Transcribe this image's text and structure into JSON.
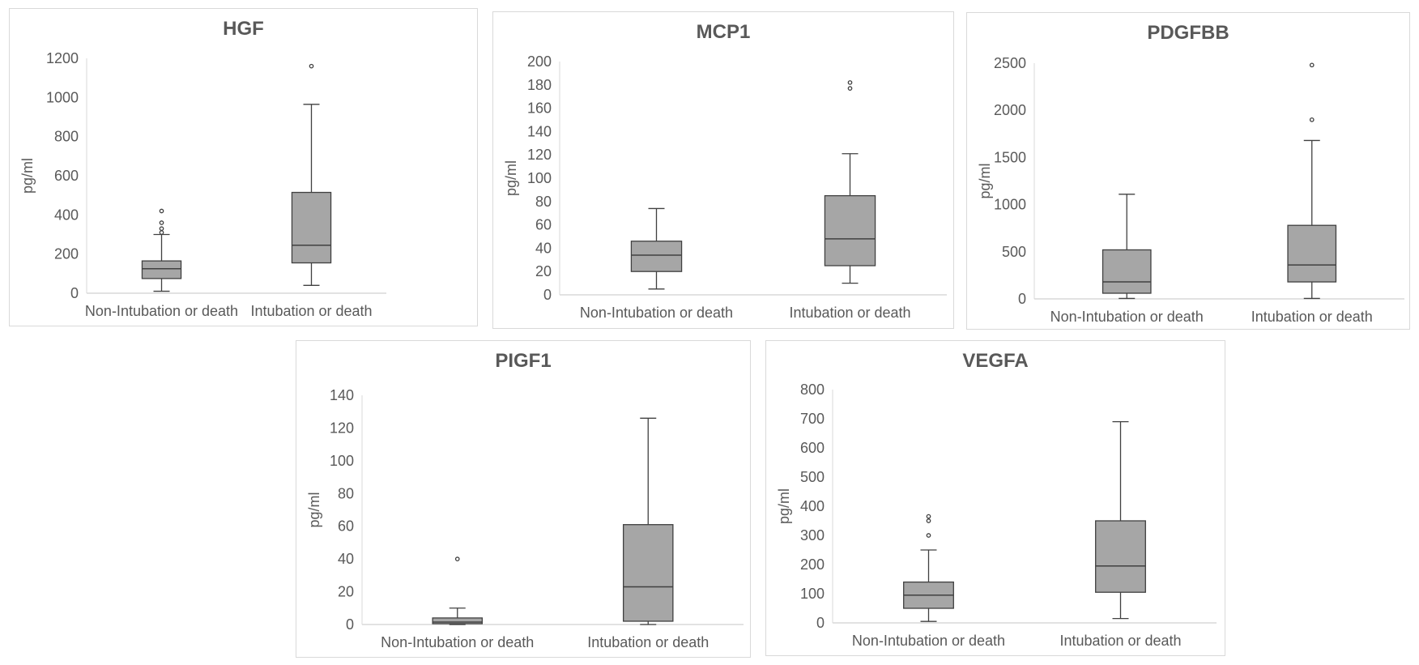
{
  "chart_data": [
    {
      "type": "boxplot",
      "title": "HGF",
      "ylabel": "pg/ml",
      "ylim": [
        0,
        1200
      ],
      "yticks": [
        0,
        200,
        400,
        600,
        800,
        1000,
        1200
      ],
      "ytick_labels": [
        "0",
        "200",
        "400",
        "600",
        "800",
        "1000",
        "1200"
      ],
      "categories": [
        "Non-Intubation or death",
        "Intubation or death"
      ],
      "grid": false,
      "boxes": [
        {
          "whisker_low": 10,
          "q1": 75,
          "median": 125,
          "q3": 165,
          "whisker_high": 300,
          "outliers": [
            310,
            330,
            360,
            420
          ]
        },
        {
          "whisker_low": 40,
          "q1": 155,
          "median": 245,
          "q3": 515,
          "whisker_high": 965,
          "outliers": [
            1160
          ]
        }
      ],
      "colors": {
        "box": "#a6a6a6",
        "line": "#404040"
      }
    },
    {
      "type": "boxplot",
      "title": "MCP1",
      "ylabel": "pg/ml",
      "ylim": [
        0,
        200
      ],
      "yticks": [
        0,
        20,
        40,
        60,
        80,
        100,
        120,
        140,
        160,
        180,
        200
      ],
      "ytick_labels": [
        "0",
        "20",
        "40",
        "60",
        "80",
        "100",
        "120",
        "140",
        "160",
        "180",
        "200"
      ],
      "categories": [
        "Non-Intubation or death",
        "Intubation or death"
      ],
      "grid": false,
      "boxes": [
        {
          "whisker_low": 5,
          "q1": 20,
          "median": 34,
          "q3": 46,
          "whisker_high": 74,
          "outliers": []
        },
        {
          "whisker_low": 10,
          "q1": 25,
          "median": 48,
          "q3": 85,
          "whisker_high": 121,
          "outliers": [
            177,
            182
          ]
        }
      ],
      "colors": {
        "box": "#a6a6a6",
        "line": "#404040"
      }
    },
    {
      "type": "boxplot",
      "title": "PDGFBB",
      "ylabel": "pg/ml",
      "ylim": [
        0,
        2500
      ],
      "yticks": [
        0,
        500,
        1000,
        1500,
        2000,
        2500
      ],
      "ytick_labels": [
        "0",
        "500",
        "1000",
        "1500",
        "2000",
        "2500"
      ],
      "categories": [
        "Non-Intubation or death",
        "Intubation or death"
      ],
      "grid": false,
      "boxes": [
        {
          "whisker_low": 5,
          "q1": 60,
          "median": 180,
          "q3": 520,
          "whisker_high": 1110,
          "outliers": []
        },
        {
          "whisker_low": 5,
          "q1": 180,
          "median": 360,
          "q3": 780,
          "whisker_high": 1680,
          "outliers": [
            1900,
            2480
          ]
        }
      ],
      "colors": {
        "box": "#a6a6a6",
        "line": "#404040"
      }
    },
    {
      "type": "boxplot",
      "title": "PIGF1",
      "ylabel": "pg/ml",
      "ylim": [
        0,
        140
      ],
      "yticks": [
        0,
        20,
        40,
        60,
        80,
        100,
        120,
        140
      ],
      "ytick_labels": [
        "0",
        "20",
        "40",
        "60",
        "80",
        "100",
        "120",
        "140"
      ],
      "categories": [
        "Non-Intubation or death",
        "Intubation or death"
      ],
      "grid": false,
      "boxes": [
        {
          "whisker_low": 0,
          "q1": 0.5,
          "median": 1.5,
          "q3": 4,
          "whisker_high": 10,
          "outliers": [
            40
          ]
        },
        {
          "whisker_low": 0,
          "q1": 2,
          "median": 23,
          "q3": 61,
          "whisker_high": 126,
          "outliers": []
        }
      ],
      "colors": {
        "box": "#a6a6a6",
        "line": "#404040"
      }
    },
    {
      "type": "boxplot",
      "title": "VEGFA",
      "ylabel": "pg/ml",
      "ylim": [
        0,
        800
      ],
      "yticks": [
        0,
        100,
        200,
        300,
        400,
        500,
        600,
        700,
        800
      ],
      "ytick_labels": [
        "0",
        "100",
        "200",
        "300",
        "400",
        "500",
        "600",
        "700",
        "800"
      ],
      "categories": [
        "Non-Intubation or death",
        "Intubation or death"
      ],
      "grid": false,
      "boxes": [
        {
          "whisker_low": 5,
          "q1": 50,
          "median": 95,
          "q3": 140,
          "whisker_high": 250,
          "outliers": [
            300,
            350,
            365
          ]
        },
        {
          "whisker_low": 15,
          "q1": 105,
          "median": 195,
          "q3": 350,
          "whisker_high": 690,
          "outliers": []
        }
      ],
      "colors": {
        "box": "#a6a6a6",
        "line": "#404040"
      }
    }
  ]
}
